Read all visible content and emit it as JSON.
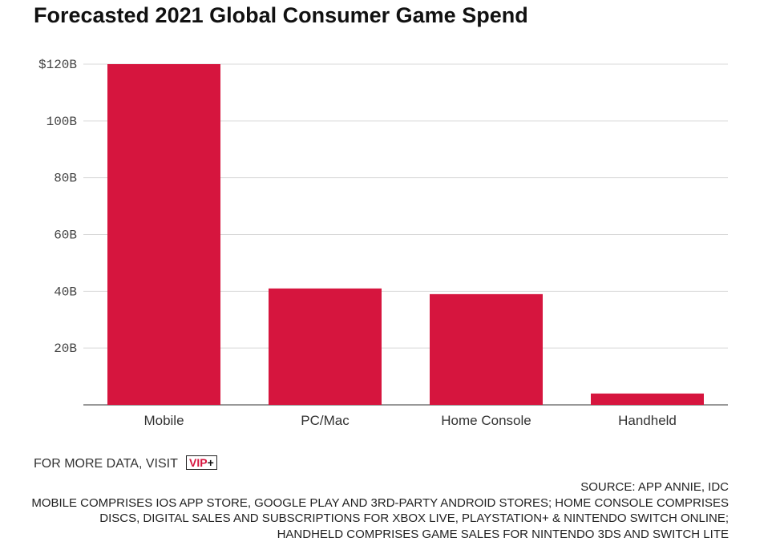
{
  "chart_data": {
    "type": "bar",
    "title": "Forecasted 2021 Global Consumer Game Spend",
    "categories": [
      "Mobile",
      "PC/Mac",
      "Home Console",
      "Handheld"
    ],
    "values": [
      120,
      41,
      39,
      4
    ],
    "unit": "B",
    "ylim": [
      0,
      120
    ],
    "yticks": [
      20,
      40,
      60,
      80,
      100,
      120
    ],
    "ytick_labels": [
      "20B",
      "40B",
      "60B",
      "80B",
      "100B",
      "$120B"
    ],
    "grid": true,
    "bar_color": "#d6153e",
    "xlabel": "",
    "ylabel": ""
  },
  "footer": {
    "more_data_text": "FOR MORE DATA, VISIT",
    "vip_text": "VIP",
    "vip_plus": "+",
    "source": "SOURCE: APP ANNIE, IDC",
    "note": "MOBILE COMPRISES IOS APP STORE, GOOGLE PLAY AND 3RD-PARTY ANDROID STORES; HOME CONSOLE COMPRISES DISCS, DIGITAL SALES AND SUBSCRIPTIONS FOR XBOX LIVE, PLAYSTATION+ & NINTENDO SWITCH ONLINE; HANDHELD COMPRISES GAME SALES FOR NINTENDO 3DS AND SWITCH LITE"
  }
}
